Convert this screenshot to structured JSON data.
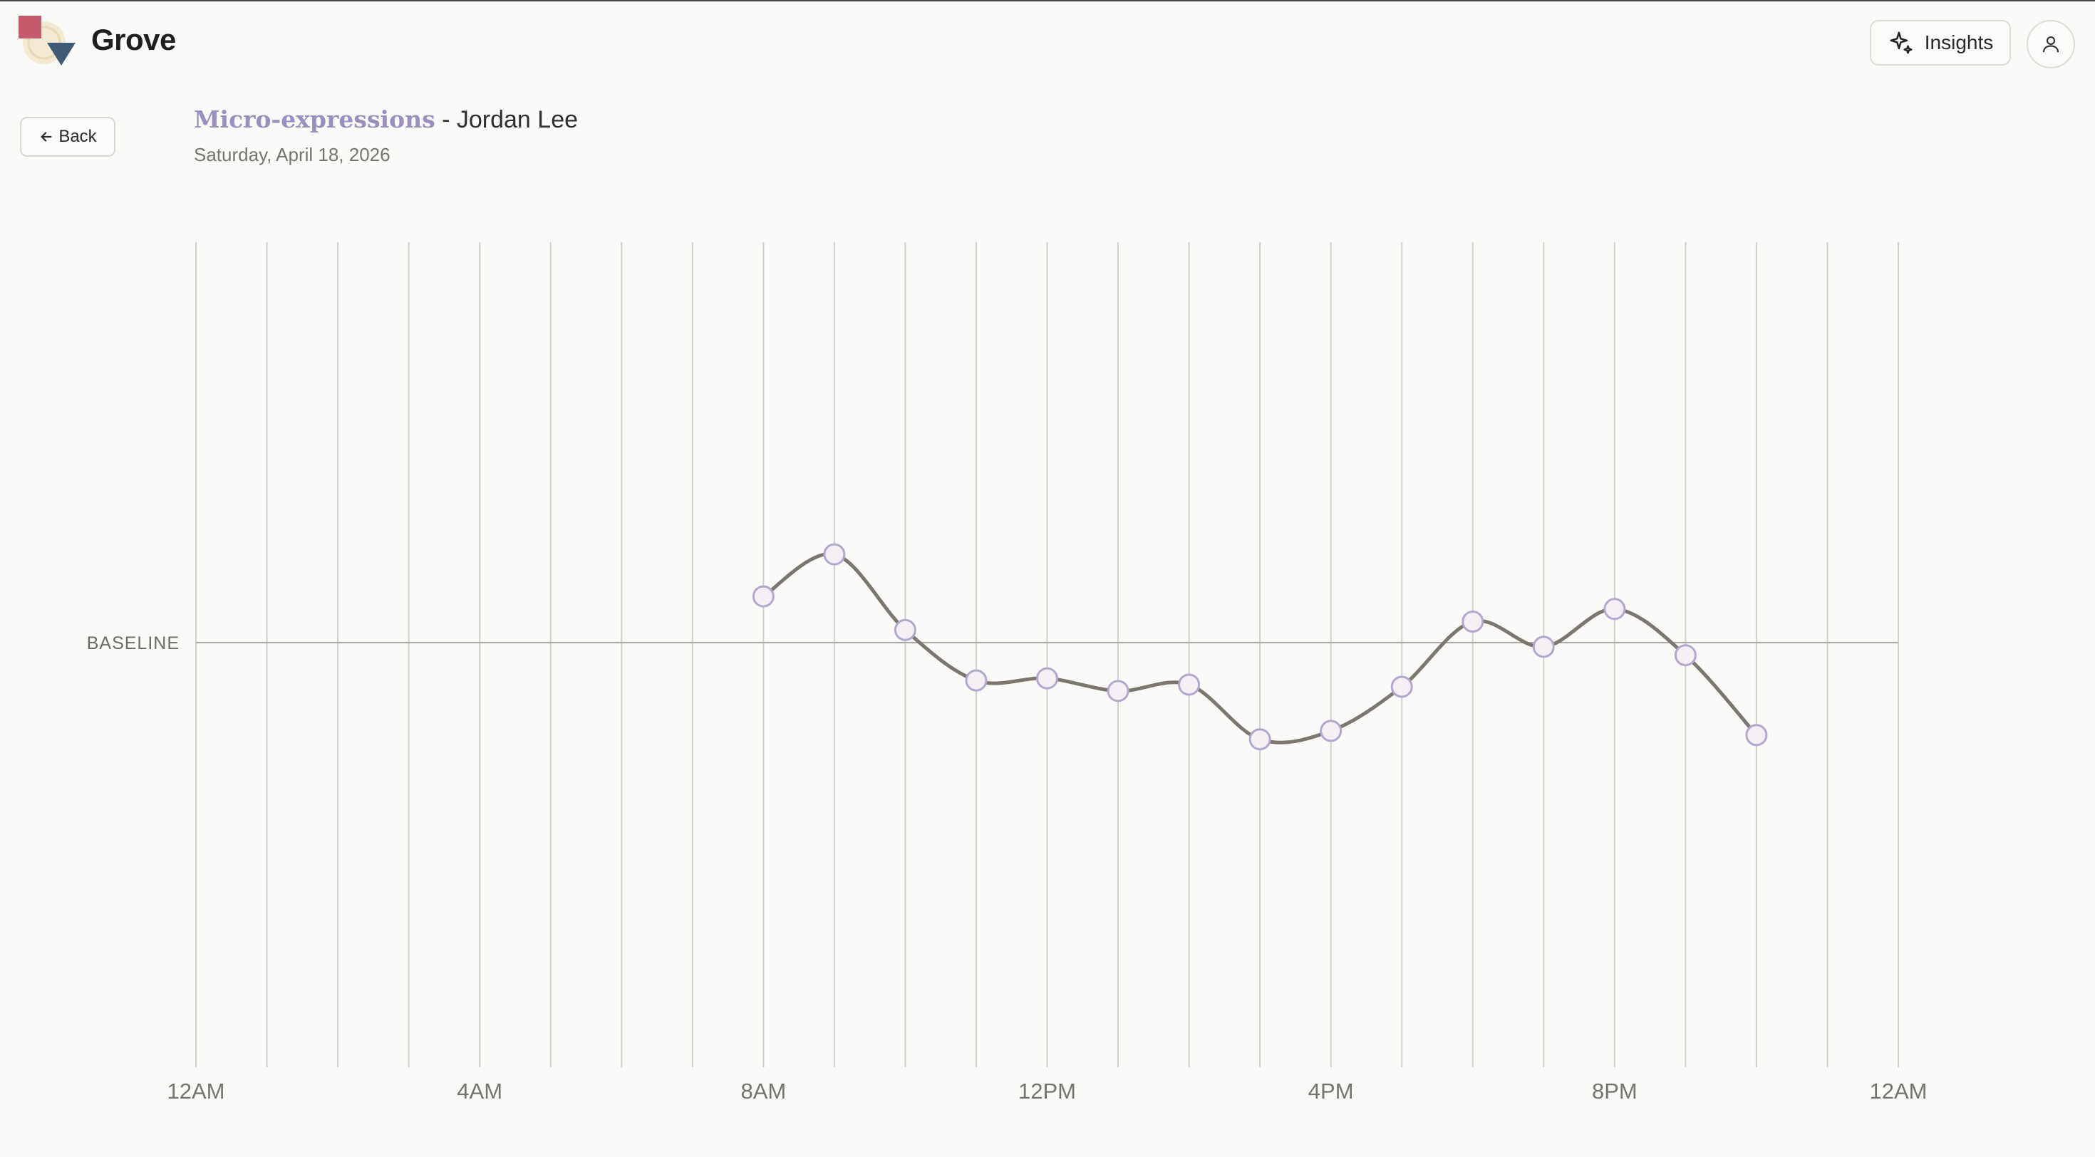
{
  "app": {
    "brand": "Grove",
    "insights_label": "Insights",
    "back_label": "Back"
  },
  "header": {
    "metric": "Micro-expressions",
    "separator": " - ",
    "person": "Jordan Lee",
    "date": "Saturday, April 18, 2026"
  },
  "colors": {
    "accent": "#9a8fbe",
    "line": "#7c776e",
    "point_fill": "#f4eff2",
    "point_stroke": "#b2a8cc",
    "grid": "#cfcfcc",
    "baseline": "#a8a8a4"
  },
  "icons": {
    "insights": "sparkles-icon",
    "avatar": "user-icon",
    "back": "arrow-left-icon"
  },
  "chart_data": {
    "type": "line",
    "baseline_label": "BASELINE",
    "baseline_value": 0,
    "ylim": [
      -1,
      1
    ],
    "xlim": [
      0,
      24
    ],
    "grid": "vertical-hourly",
    "x_ticks": [
      {
        "value": 0,
        "label": "12AM"
      },
      {
        "value": 4,
        "label": "4AM"
      },
      {
        "value": 8,
        "label": "8AM"
      },
      {
        "value": 12,
        "label": "12PM"
      },
      {
        "value": 16,
        "label": "4PM"
      },
      {
        "value": 20,
        "label": "8PM"
      },
      {
        "value": 24,
        "label": "12AM"
      }
    ],
    "x": [
      8,
      9,
      10,
      11,
      12,
      13,
      14,
      15,
      16,
      17,
      18,
      19,
      20,
      21,
      22
    ],
    "values": [
      0.11,
      0.21,
      0.03,
      -0.09,
      -0.085,
      -0.115,
      -0.1,
      -0.23,
      -0.21,
      -0.105,
      0.05,
      -0.01,
      0.08,
      -0.03,
      -0.22
    ]
  }
}
